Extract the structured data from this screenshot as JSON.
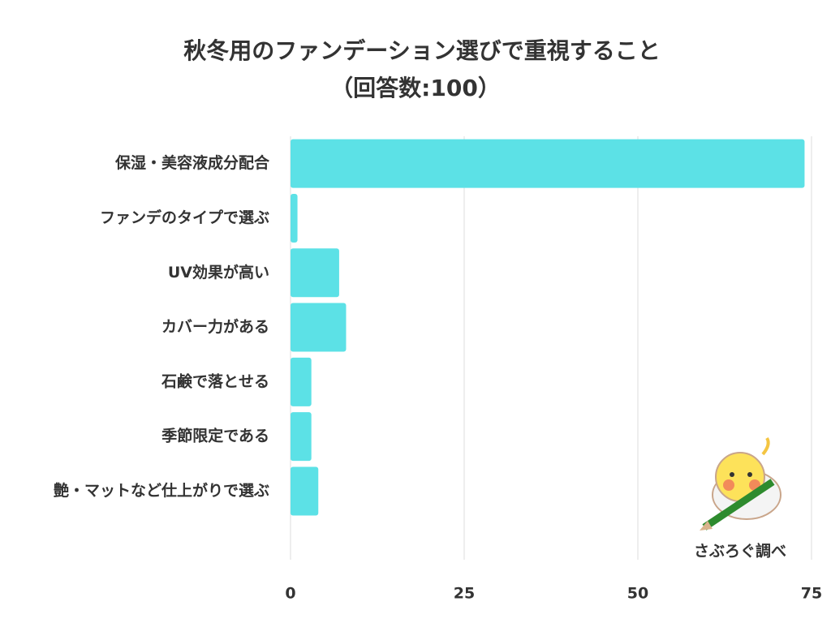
{
  "chart_data": {
    "type": "barh",
    "title": "秋冬用のファンデーション選びで重視すること",
    "subtitle": "（回答数:100）",
    "categories": [
      "保湿・美容液成分配合",
      "ファンデのタイプで選ぶ",
      "UV効果が高い",
      "カバー力がある",
      "石鹸で落とせる",
      "季節限定である",
      "艶・マットなど仕上がりで選ぶ"
    ],
    "values": [
      74,
      1,
      7,
      8,
      3,
      3,
      4
    ],
    "color": "#5ce1e6",
    "xlim": [
      0,
      75
    ],
    "xticks": [
      0,
      25,
      50,
      75
    ],
    "grid": true,
    "annotation": "さぶろぐ調べ"
  }
}
